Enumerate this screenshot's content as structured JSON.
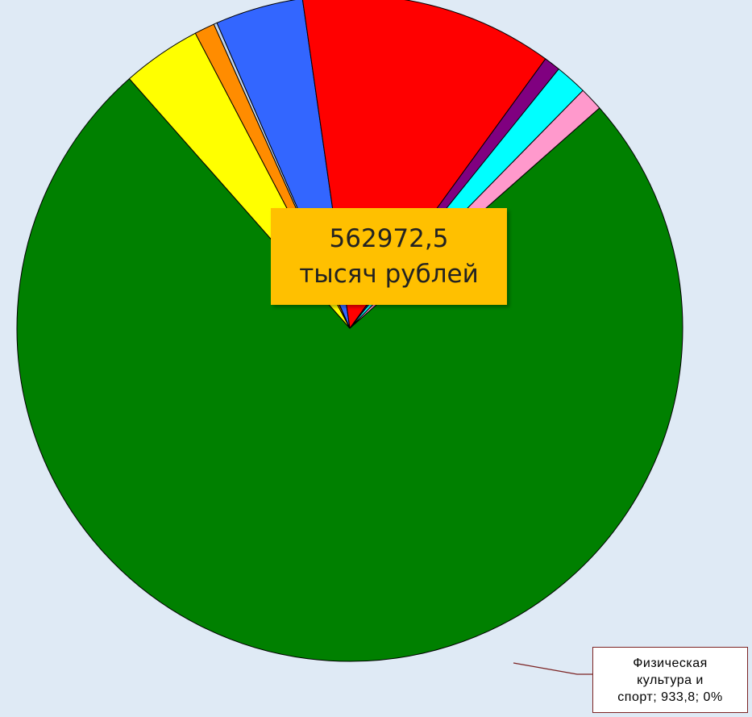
{
  "chart_data": {
    "type": "pie",
    "title": "",
    "slices": [
      {
        "value": 0.8,
        "color": "#008000"
      },
      {
        "value": 0.041,
        "color": "#ffff00"
      },
      {
        "value": 0.0105,
        "color": "#ff8c00"
      },
      {
        "value": 0.0017,
        "value_label": "Физическая культура и спорт; 933,8; 0%",
        "color": "#c0d4f0"
      },
      {
        "value": 0.0455,
        "color": "#3366ff"
      },
      {
        "value": 0.131,
        "color": "#ff0000"
      },
      {
        "value": 0.0085,
        "color": "#800080"
      },
      {
        "value": 0.0165,
        "color": "#00ffff"
      },
      {
        "value": 0.0123,
        "color": "#ff99cc"
      }
    ],
    "start_angle_deg": 48.6,
    "center_label": {
      "line1": "562972,5",
      "line2": "тысяч рублей"
    },
    "callout": {
      "line1": "Физическая",
      "line2": "культура и",
      "line3": "спорт; 933,8; 0%"
    }
  }
}
